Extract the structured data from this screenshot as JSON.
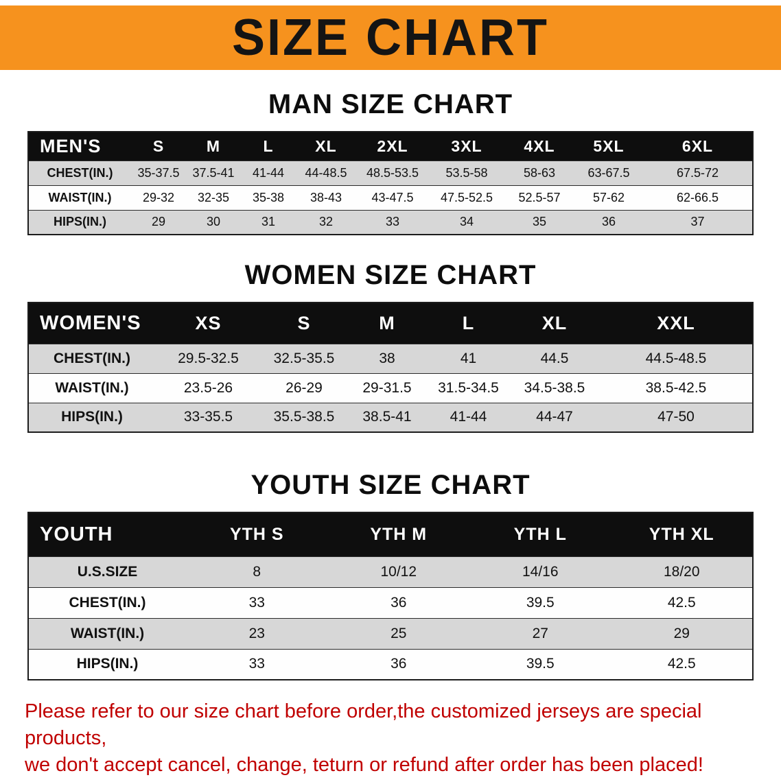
{
  "banner": {
    "title": "SIZE CHART",
    "bg_color": "#F6921E"
  },
  "sections": [
    {
      "heading": "MAN SIZE CHART",
      "table": {
        "title": "MEN'S",
        "columns": [
          "S",
          "M",
          "L",
          "XL",
          "2XL",
          "3XL",
          "4XL",
          "5XL",
          "6XL"
        ],
        "rows": [
          {
            "label": "CHEST(IN.)",
            "values": [
              "35-37.5",
              "37.5-41",
              "41-44",
              "44-48.5",
              "48.5-53.5",
              "53.5-58",
              "58-63",
              "63-67.5",
              "67.5-72"
            ]
          },
          {
            "label": "WAIST(IN.)",
            "values": [
              "29-32",
              "32-35",
              "35-38",
              "38-43",
              "43-47.5",
              "47.5-52.5",
              "52.5-57",
              "57-62",
              "62-66.5"
            ]
          },
          {
            "label": "HIPS(IN.)",
            "values": [
              "29",
              "30",
              "31",
              "32",
              "33",
              "34",
              "35",
              "36",
              "37"
            ]
          }
        ]
      }
    },
    {
      "heading": "WOMEN SIZE CHART",
      "table": {
        "title": "WOMEN'S",
        "columns": [
          "XS",
          "S",
          "M",
          "L",
          "XL",
          "XXL"
        ],
        "rows": [
          {
            "label": "CHEST(IN.)",
            "values": [
              "29.5-32.5",
              "32.5-35.5",
              "38",
              "41",
              "44.5",
              "44.5-48.5"
            ]
          },
          {
            "label": "WAIST(IN.)",
            "values": [
              "23.5-26",
              "26-29",
              "29-31.5",
              "31.5-34.5",
              "34.5-38.5",
              "38.5-42.5"
            ]
          },
          {
            "label": "HIPS(IN.)",
            "values": [
              "33-35.5",
              "35.5-38.5",
              "38.5-41",
              "41-44",
              "44-47",
              "47-50"
            ]
          }
        ]
      }
    },
    {
      "heading": "YOUTH SIZE CHART",
      "table": {
        "title": "YOUTH",
        "columns": [
          "YTH S",
          "YTH M",
          "YTH L",
          "YTH XL"
        ],
        "rows": [
          {
            "label": "U.S.SIZE",
            "values": [
              "8",
              "10/12",
              "14/16",
              "18/20"
            ]
          },
          {
            "label": "CHEST(IN.)",
            "values": [
              "33",
              "36",
              "39.5",
              "42.5"
            ]
          },
          {
            "label": "WAIST(IN.)",
            "values": [
              "23",
              "25",
              "27",
              "29"
            ]
          },
          {
            "label": "HIPS(IN.)",
            "values": [
              "33",
              "36",
              "39.5",
              "42.5"
            ]
          }
        ]
      }
    }
  ],
  "footer": {
    "color": "#C00000",
    "lines": [
      "Please refer to our size chart before order,the customized jerseys are special products,",
      "we don't accept cancel, change, teturn or refund after order has been placed!"
    ]
  }
}
